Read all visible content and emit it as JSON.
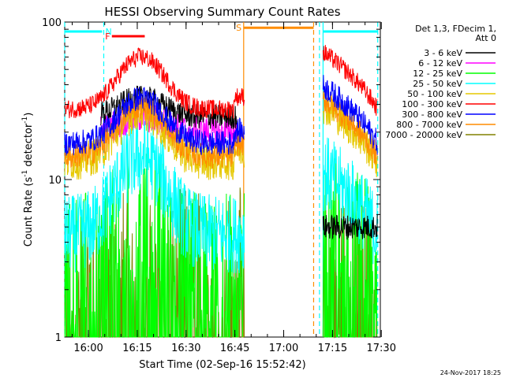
{
  "chart_data": {
    "type": "line",
    "title": "HESSI Observing Summary Count Rates",
    "xlabel": "Start Time (02-Sep-16 15:52:42)",
    "ylabel": "Count Rate (s⁻¹ detector⁻¹)",
    "ylabel_main": "Count Rate (s",
    "ylabel_sup1": "-1",
    "ylabel_mid": " detector",
    "ylabel_sup2": "-1",
    "ylabel_end": ")",
    "yscale": "log",
    "ylim": [
      1,
      100
    ],
    "y_ticks": [
      {
        "v": 1,
        "label": "1"
      },
      {
        "v": 10,
        "label": "10"
      },
      {
        "v": 100,
        "label": "100"
      }
    ],
    "xlim_minutes": [
      0,
      97
    ],
    "x_ticks": [
      {
        "m": 7.3,
        "label": "16:00"
      },
      {
        "m": 22.3,
        "label": "16:15"
      },
      {
        "m": 37.3,
        "label": "16:30"
      },
      {
        "m": 52.3,
        "label": "16:45"
      },
      {
        "m": 67.3,
        "label": "17:00"
      },
      {
        "m": 82.3,
        "label": "17:15"
      },
      {
        "m": 97.3,
        "label": "17:30"
      }
    ],
    "legend": {
      "header": [
        "Det 1,3, FDecim 1,",
        "Att 0"
      ],
      "placement": "right"
    },
    "series": [
      {
        "name": "3 - 6 keV",
        "color": "#000000",
        "profile": "bg",
        "base": 25,
        "peak": 8,
        "noise": 0.08
      },
      {
        "name": "6 - 12 keV",
        "color": "#ff00ff",
        "profile": "bg",
        "base": 20,
        "peak": 5,
        "noise": 0.1
      },
      {
        "name": "12 - 25 keV",
        "color": "#00ff00",
        "profile": "low",
        "base": 3,
        "peak": 6,
        "noise": 0.45
      },
      {
        "name": "25 - 50 keV",
        "color": "#00ffff",
        "profile": "mid",
        "base": 4.5,
        "peak": 14,
        "noise": 0.25
      },
      {
        "name": "50 - 100 keV",
        "color": "#e6c800",
        "profile": "hi",
        "base": 13,
        "peak": 27,
        "noise": 0.12
      },
      {
        "name": "100 - 300 keV",
        "color": "#ff0000",
        "profile": "hi",
        "base": 28,
        "peak": 60,
        "noise": 0.06
      },
      {
        "name": "300 - 800 keV",
        "color": "#0000ff",
        "profile": "hi",
        "base": 17,
        "peak": 33,
        "noise": 0.08
      },
      {
        "name": "800 - 7000 keV",
        "color": "#ff8c00",
        "profile": "hi",
        "base": 14,
        "peak": 29,
        "noise": 0.08
      },
      {
        "name": "7000 - 20000 keV",
        "color": "#808000",
        "profile": "noise",
        "base": 1.8,
        "peak": 2.5,
        "noise": 0.7
      }
    ],
    "flag_bars": [
      {
        "label": "",
        "color": "#00ffff",
        "start": 0,
        "end": 11.5,
        "y": 80,
        "text_at": null
      },
      {
        "label": "N",
        "color": "#00ffff",
        "start": 12,
        "end": 12,
        "y": 80,
        "text_at": 13.5
      },
      {
        "label": "F",
        "color": "#ff0000",
        "start": 14.5,
        "end": 24.6,
        "y": 70,
        "text_at": 13.2
      },
      {
        "label": "S",
        "color": "#ff8c00",
        "start": 55,
        "end": 76.5,
        "y": 88,
        "text_at": 53.5
      },
      {
        "label": "",
        "color": "#00ffff",
        "start": 79.5,
        "end": 96.2,
        "y": 80,
        "text_at": null
      }
    ],
    "vertical_lines": [
      {
        "m": 0,
        "color": "#00ffff",
        "dash": true
      },
      {
        "m": 12,
        "color": "#00ffff",
        "dash": true
      },
      {
        "m": 55,
        "color": "#ff8c00",
        "dash": false
      },
      {
        "m": 76.5,
        "color": "#ff8c00",
        "dash": true
      },
      {
        "m": 78.3,
        "color": "#00ffff",
        "dash": true
      },
      {
        "m": 79.4,
        "color": "#00ffff",
        "dash": false
      },
      {
        "m": 96.2,
        "color": "#00ffff",
        "dash": true
      }
    ],
    "data_segments": [
      [
        0,
        55.3
      ],
      [
        79.4,
        96.2
      ]
    ]
  },
  "footer": {
    "date_stamp": "24-Nov-2017 18:25"
  }
}
